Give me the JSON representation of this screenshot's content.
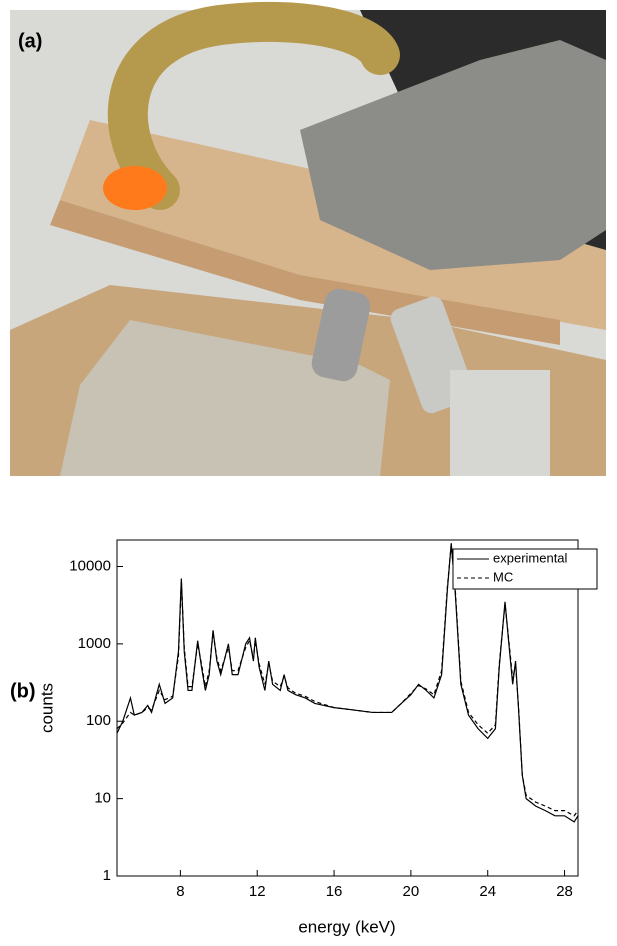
{
  "figure": {
    "panel_a_label": "(a)",
    "panel_b_label": "(b)"
  },
  "chart_data": {
    "type": "line",
    "xlabel": "energy (keV)",
    "ylabel": "counts",
    "x": [
      4.7,
      5.0,
      5.4,
      5.6,
      6.0,
      6.3,
      6.5,
      6.9,
      7.2,
      7.6,
      7.9,
      8.05,
      8.2,
      8.4,
      8.6,
      8.9,
      9.1,
      9.3,
      9.5,
      9.7,
      9.9,
      10.1,
      10.5,
      10.7,
      11.0,
      11.4,
      11.6,
      11.8,
      11.9,
      12.1,
      12.4,
      12.6,
      12.8,
      13.2,
      13.4,
      13.6,
      14.0,
      14.5,
      15.0,
      16.0,
      17.0,
      18.0,
      19.0,
      19.5,
      20.0,
      20.4,
      20.8,
      21.2,
      21.6,
      21.9,
      22.1,
      22.3,
      22.6,
      23.0,
      23.5,
      24.0,
      24.4,
      24.6,
      24.9,
      25.1,
      25.3,
      25.45,
      25.6,
      25.8,
      26.0,
      26.5,
      27.0,
      27.5,
      28.0,
      28.5,
      28.7
    ],
    "series": [
      {
        "name": "experimental",
        "color": "#000000",
        "dash": "solid",
        "values": [
          70,
          100,
          200,
          120,
          130,
          160,
          130,
          300,
          170,
          200,
          800,
          7000,
          800,
          250,
          250,
          1100,
          500,
          250,
          400,
          1500,
          600,
          400,
          1000,
          400,
          400,
          1000,
          1200,
          600,
          1200,
          500,
          250,
          600,
          300,
          250,
          400,
          250,
          220,
          200,
          170,
          150,
          140,
          130,
          130,
          170,
          220,
          300,
          250,
          200,
          400,
          5000,
          20000,
          5000,
          300,
          120,
          80,
          60,
          80,
          500,
          3500,
          1000,
          300,
          600,
          150,
          20,
          10,
          8,
          7,
          6,
          6,
          5,
          6
        ]
      },
      {
        "name": "MC",
        "color": "#000000",
        "dash": "dashed",
        "values": [
          80,
          95,
          130,
          120,
          130,
          150,
          140,
          250,
          190,
          210,
          700,
          6500,
          900,
          280,
          280,
          1000,
          550,
          280,
          450,
          1400,
          650,
          450,
          900,
          450,
          450,
          900,
          1100,
          650,
          1100,
          550,
          300,
          550,
          330,
          280,
          380,
          270,
          230,
          210,
          180,
          150,
          140,
          130,
          130,
          170,
          230,
          290,
          260,
          220,
          450,
          5500,
          19000,
          5500,
          330,
          130,
          90,
          70,
          90,
          550,
          3300,
          1100,
          350,
          550,
          160,
          20,
          11,
          9,
          8,
          7,
          7,
          6,
          7
        ]
      }
    ],
    "xlim": [
      4.7,
      28.7
    ],
    "xticks": [
      8,
      12,
      16,
      20,
      24,
      28
    ],
    "ylim": [
      1,
      22000
    ],
    "yticks": [
      1,
      10,
      100,
      1000,
      10000
    ],
    "log_y": true,
    "legend": "upper right"
  }
}
